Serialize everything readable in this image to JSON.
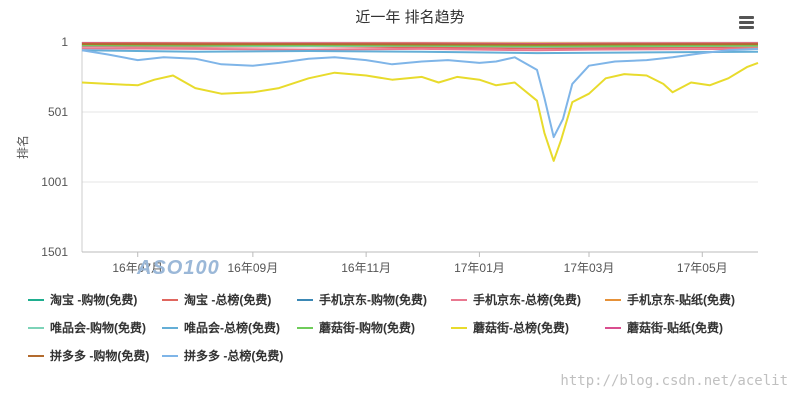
{
  "chart_data": {
    "type": "line",
    "title": "近一年 排名趋势",
    "ylabel": "排名",
    "y_axis_reversed": true,
    "ylim": [
      1,
      1501
    ],
    "y_ticks": [
      "1",
      "501",
      "1001",
      "1501"
    ],
    "x_range": [
      "2016-06-01",
      "2017-05-31"
    ],
    "x_ticks": [
      {
        "date": "2016-07-01",
        "label": "16年07月"
      },
      {
        "date": "2016-09-01",
        "label": "16年09月"
      },
      {
        "date": "2016-11-01",
        "label": "16年11月"
      },
      {
        "date": "2017-01-01",
        "label": "17年01月"
      },
      {
        "date": "2017-03-01",
        "label": "17年03月"
      },
      {
        "date": "2017-05-01",
        "label": "17年05月"
      }
    ],
    "grid": true,
    "legend_position": "bottom",
    "series": [
      {
        "name": "淘宝 -购物(免费)",
        "color": "#1fae8f",
        "points": [
          [
            "2016-06-01",
            12
          ],
          [
            "2016-08-01",
            14
          ],
          [
            "2016-10-01",
            13
          ],
          [
            "2016-12-01",
            15
          ],
          [
            "2017-02-01",
            16
          ],
          [
            "2017-04-01",
            14
          ],
          [
            "2017-05-31",
            13
          ]
        ]
      },
      {
        "name": "淘宝 -总榜(免费)",
        "color": "#e0665f",
        "points": [
          [
            "2016-06-01",
            30
          ],
          [
            "2016-08-01",
            35
          ],
          [
            "2016-10-01",
            32
          ],
          [
            "2016-12-01",
            38
          ],
          [
            "2017-02-01",
            45
          ],
          [
            "2017-04-01",
            40
          ],
          [
            "2017-05-31",
            35
          ]
        ]
      },
      {
        "name": "手机京东-购物(免费)",
        "color": "#3b88b5",
        "points": [
          [
            "2016-06-01",
            18
          ],
          [
            "2016-08-01",
            20
          ],
          [
            "2016-10-01",
            22
          ],
          [
            "2016-12-01",
            20
          ],
          [
            "2017-02-01",
            25
          ],
          [
            "2017-04-01",
            22
          ],
          [
            "2017-05-31",
            20
          ]
        ]
      },
      {
        "name": "手机京东-总榜(免费)",
        "color": "#e97890",
        "points": [
          [
            "2016-06-01",
            45
          ],
          [
            "2016-08-01",
            50
          ],
          [
            "2016-10-01",
            55
          ],
          [
            "2016-12-01",
            50
          ],
          [
            "2017-02-01",
            60
          ],
          [
            "2017-03-01",
            55
          ],
          [
            "2017-05-31",
            50
          ]
        ]
      },
      {
        "name": "手机京东-贴纸(免费)",
        "color": "#e69138",
        "points": [
          [
            "2016-06-01",
            8
          ],
          [
            "2016-08-01",
            9
          ],
          [
            "2016-10-01",
            10
          ],
          [
            "2016-12-01",
            9
          ],
          [
            "2017-02-01",
            11
          ],
          [
            "2017-04-01",
            10
          ],
          [
            "2017-05-31",
            9
          ]
        ]
      },
      {
        "name": "唯品会-购物(免费)",
        "color": "#7dd3b8",
        "points": [
          [
            "2016-06-01",
            25
          ],
          [
            "2016-08-01",
            28
          ],
          [
            "2016-10-01",
            30
          ],
          [
            "2016-12-01",
            28
          ],
          [
            "2017-02-01",
            35
          ],
          [
            "2017-04-01",
            30
          ],
          [
            "2017-05-31",
            28
          ]
        ]
      },
      {
        "name": "唯品会-总榜(免费)",
        "color": "#64aed6",
        "points": [
          [
            "2016-06-01",
            60
          ],
          [
            "2016-08-01",
            70
          ],
          [
            "2016-10-01",
            65
          ],
          [
            "2016-12-01",
            70
          ],
          [
            "2017-02-01",
            80
          ],
          [
            "2017-04-01",
            75
          ],
          [
            "2017-05-31",
            70
          ]
        ]
      },
      {
        "name": "蘑菇街-购物(免费)",
        "color": "#6fcc5a",
        "points": [
          [
            "2016-06-01",
            22
          ],
          [
            "2016-08-01",
            25
          ],
          [
            "2016-10-01",
            24
          ],
          [
            "2016-12-01",
            26
          ],
          [
            "2017-02-01",
            30
          ],
          [
            "2017-04-01",
            28
          ],
          [
            "2017-05-31",
            25
          ]
        ]
      },
      {
        "name": "蘑菇街-总榜(免费)",
        "color": "#e8db2c",
        "points": [
          [
            "2016-06-01",
            290
          ],
          [
            "2016-06-15",
            300
          ],
          [
            "2016-07-01",
            310
          ],
          [
            "2016-07-10",
            270
          ],
          [
            "2016-07-20",
            240
          ],
          [
            "2016-08-01",
            330
          ],
          [
            "2016-08-15",
            370
          ],
          [
            "2016-09-01",
            360
          ],
          [
            "2016-09-15",
            330
          ],
          [
            "2016-10-01",
            260
          ],
          [
            "2016-10-15",
            220
          ],
          [
            "2016-11-01",
            240
          ],
          [
            "2016-11-15",
            270
          ],
          [
            "2016-12-01",
            250
          ],
          [
            "2016-12-10",
            290
          ],
          [
            "2016-12-20",
            250
          ],
          [
            "2017-01-01",
            270
          ],
          [
            "2017-01-10",
            310
          ],
          [
            "2017-01-20",
            290
          ],
          [
            "2017-02-01",
            420
          ],
          [
            "2017-02-05",
            650
          ],
          [
            "2017-02-10",
            850
          ],
          [
            "2017-02-14",
            700
          ],
          [
            "2017-02-20",
            430
          ],
          [
            "2017-03-01",
            370
          ],
          [
            "2017-03-10",
            260
          ],
          [
            "2017-03-20",
            230
          ],
          [
            "2017-04-01",
            240
          ],
          [
            "2017-04-10",
            300
          ],
          [
            "2017-04-15",
            360
          ],
          [
            "2017-04-25",
            290
          ],
          [
            "2017-05-05",
            310
          ],
          [
            "2017-05-15",
            260
          ],
          [
            "2017-05-25",
            180
          ],
          [
            "2017-05-31",
            150
          ]
        ]
      },
      {
        "name": "蘑菇街-贴纸(免费)",
        "color": "#d94e8f",
        "points": [
          [
            "2016-06-01",
            10
          ],
          [
            "2016-08-01",
            12
          ],
          [
            "2016-10-01",
            11
          ],
          [
            "2016-12-01",
            12
          ],
          [
            "2017-02-01",
            15
          ],
          [
            "2017-04-01",
            12
          ],
          [
            "2017-05-31",
            11
          ]
        ]
      },
      {
        "name": "拼多多 -购物(免费)",
        "color": "#b36b2e",
        "points": [
          [
            "2016-06-01",
            15
          ],
          [
            "2016-08-01",
            17
          ],
          [
            "2016-10-01",
            16
          ],
          [
            "2016-12-01",
            18
          ],
          [
            "2017-02-01",
            20
          ],
          [
            "2017-04-01",
            17
          ],
          [
            "2017-05-31",
            16
          ]
        ]
      },
      {
        "name": "拼多多 -总榜(免费)",
        "color": "#7fb5e8",
        "points": [
          [
            "2016-06-01",
            60
          ],
          [
            "2016-06-15",
            90
          ],
          [
            "2016-07-01",
            130
          ],
          [
            "2016-07-15",
            110
          ],
          [
            "2016-08-01",
            120
          ],
          [
            "2016-08-15",
            160
          ],
          [
            "2016-09-01",
            170
          ],
          [
            "2016-09-15",
            150
          ],
          [
            "2016-10-01",
            120
          ],
          [
            "2016-10-15",
            110
          ],
          [
            "2016-11-01",
            130
          ],
          [
            "2016-11-15",
            160
          ],
          [
            "2016-12-01",
            140
          ],
          [
            "2016-12-15",
            130
          ],
          [
            "2017-01-01",
            150
          ],
          [
            "2017-01-10",
            140
          ],
          [
            "2017-01-20",
            110
          ],
          [
            "2017-02-01",
            200
          ],
          [
            "2017-02-05",
            400
          ],
          [
            "2017-02-10",
            680
          ],
          [
            "2017-02-15",
            550
          ],
          [
            "2017-02-20",
            300
          ],
          [
            "2017-03-01",
            170
          ],
          [
            "2017-03-15",
            140
          ],
          [
            "2017-04-01",
            130
          ],
          [
            "2017-04-15",
            110
          ],
          [
            "2017-05-01",
            80
          ],
          [
            "2017-05-15",
            60
          ],
          [
            "2017-05-31",
            50
          ]
        ]
      }
    ]
  },
  "toolbar": {
    "menu_icon": "hamburger-menu-icon"
  },
  "watermark": {
    "logo_text": "ASO100",
    "url_text": "http://blog.csdn.net/acelit"
  }
}
